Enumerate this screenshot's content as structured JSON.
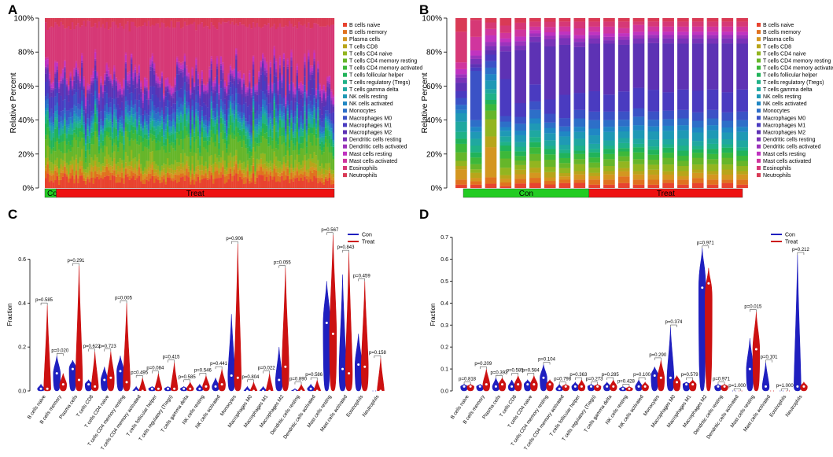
{
  "panel_letters": [
    "A",
    "B",
    "C",
    "D"
  ],
  "cell_types": [
    "B cells naive",
    "B cells memory",
    "Plasma cells",
    "T cells CD8",
    "T cells CD4 naive",
    "T cells CD4 memory resting",
    "T cells CD4 memory activated",
    "T cells follicular helper",
    "T cells regulatory (Tregs)",
    "T cells gamma delta",
    "NK cells resting",
    "NK cells activated",
    "Monocytes",
    "Macrophages M0",
    "Macrophages M1",
    "Macrophages M2",
    "Dendritic cells resting",
    "Dendritic cells activated",
    "Mast cells resting",
    "Mast cells activated",
    "Eosinophils",
    "Neutrophils"
  ],
  "palette": [
    "#e8432f",
    "#e0721f",
    "#d49620",
    "#b8a51a",
    "#93b520",
    "#66b62a",
    "#3db83a",
    "#21b35a",
    "#1fb287",
    "#1fa8a0",
    "#1f99b5",
    "#2087c4",
    "#2d6fc8",
    "#3b52c6",
    "#4a3bc0",
    "#5d32b4",
    "#7a32b8",
    "#9c33bc",
    "#c033c0",
    "#d0359e",
    "#d63876",
    "#d93a55"
  ],
  "chart_data": [
    {
      "panel": "A",
      "type": "bar",
      "stacked": true,
      "ylabel": "Relative Percent",
      "yticks": [
        "0%",
        "20%",
        "40%",
        "60%",
        "80%",
        "100%"
      ],
      "ylim": [
        0,
        100
      ],
      "groups": [
        {
          "label": "Con",
          "color": "#22cc22",
          "n": 6
        },
        {
          "label": "Treat",
          "color": "#ee1111",
          "n": 146
        }
      ],
      "sample_count": 152,
      "legend": "right"
    },
    {
      "panel": "B",
      "type": "bar",
      "stacked": true,
      "ylabel": "Relative Percent",
      "yticks": [
        "0%",
        "20%",
        "40%",
        "60%",
        "80%",
        "100%"
      ],
      "ylim": [
        0,
        100
      ],
      "groups": [
        {
          "label": "Con",
          "color": "#22cc22",
          "n": 9
        },
        {
          "label": "Treat",
          "color": "#ee1111",
          "n": 11
        }
      ],
      "samples_percent": [
        [
          2,
          3,
          6,
          2,
          3,
          5,
          5,
          3,
          4,
          6,
          5,
          2,
          3,
          4,
          4,
          5,
          3,
          2,
          3,
          4,
          18,
          8
        ],
        [
          2,
          2,
          2,
          3,
          2,
          3,
          4,
          3,
          4,
          4,
          4,
          3,
          4,
          29,
          2,
          2,
          3,
          2,
          3,
          8,
          10,
          1
        ],
        [
          2,
          3,
          14,
          5,
          8,
          4,
          3,
          2,
          3,
          2,
          4,
          3,
          3,
          3,
          3,
          2,
          2,
          2,
          3,
          3,
          3,
          2
        ],
        [
          1,
          2,
          2,
          2,
          4,
          5,
          4,
          3,
          2,
          3,
          3,
          2,
          3,
          3,
          20,
          15,
          3,
          2,
          2,
          3,
          4,
          4
        ],
        [
          2,
          2,
          2,
          2,
          2,
          2,
          2,
          2,
          2,
          2,
          3,
          2,
          3,
          3,
          6,
          23,
          2,
          2,
          2,
          3,
          3,
          2
        ],
        [
          3,
          3,
          3,
          3,
          4,
          4,
          4,
          3,
          3,
          4,
          4,
          3,
          5,
          5,
          10,
          25,
          3,
          2,
          2,
          2,
          3,
          2
        ],
        [
          2,
          2,
          2,
          3,
          3,
          4,
          3,
          3,
          2,
          3,
          4,
          3,
          3,
          5,
          8,
          30,
          4,
          2,
          2,
          3,
          3,
          2
        ],
        [
          3,
          2,
          2,
          2,
          3,
          3,
          3,
          3,
          2,
          3,
          5,
          3,
          3,
          5,
          14,
          30,
          4,
          2,
          2,
          3,
          3,
          2
        ],
        [
          3,
          2,
          3,
          2,
          4,
          3,
          3,
          2,
          3,
          4,
          4,
          3,
          5,
          5,
          10,
          27,
          3,
          2,
          2,
          4,
          4,
          2
        ],
        [
          2,
          3,
          2,
          2,
          3,
          3,
          3,
          3,
          2,
          3,
          5,
          4,
          5,
          5,
          12,
          28,
          3,
          2,
          2,
          3,
          3,
          2
        ],
        [
          2,
          3,
          3,
          2,
          3,
          4,
          3,
          3,
          2,
          3,
          5,
          3,
          4,
          5,
          10,
          30,
          2,
          2,
          2,
          4,
          3,
          2
        ],
        [
          3,
          4,
          3,
          2,
          4,
          3,
          3,
          2,
          3,
          3,
          4,
          3,
          4,
          5,
          12,
          28,
          3,
          2,
          2,
          3,
          4,
          2
        ],
        [
          2,
          3,
          3,
          2,
          4,
          3,
          4,
          3,
          2,
          3,
          5,
          3,
          5,
          5,
          12,
          26,
          3,
          2,
          2,
          4,
          2,
          2
        ],
        [
          2,
          3,
          3,
          3,
          3,
          3,
          3,
          3,
          2,
          4,
          5,
          3,
          4,
          5,
          13,
          28,
          3,
          2,
          2,
          3,
          3,
          2
        ],
        [
          3,
          2,
          3,
          2,
          4,
          4,
          3,
          3,
          2,
          3,
          5,
          3,
          4,
          5,
          11,
          29,
          3,
          2,
          2,
          3,
          3,
          2
        ],
        [
          2,
          3,
          2,
          3,
          3,
          3,
          3,
          3,
          3,
          4,
          5,
          3,
          4,
          5,
          12,
          27,
          3,
          2,
          2,
          3,
          3,
          2
        ],
        [
          3,
          3,
          3,
          2,
          3,
          4,
          3,
          2,
          2,
          3,
          5,
          3,
          4,
          5,
          13,
          28,
          3,
          2,
          2,
          3,
          3,
          2
        ],
        [
          2,
          3,
          3,
          2,
          4,
          3,
          3,
          3,
          3,
          3,
          5,
          3,
          4,
          5,
          12,
          27,
          3,
          2,
          2,
          3,
          3,
          2
        ],
        [
          3,
          2,
          3,
          3,
          3,
          4,
          3,
          3,
          2,
          3,
          4,
          3,
          4,
          5,
          12,
          29,
          3,
          2,
          2,
          3,
          3,
          2
        ],
        [
          2,
          3,
          3,
          2,
          3,
          3,
          3,
          3,
          2,
          4,
          5,
          3,
          4,
          5,
          13,
          27,
          3,
          2,
          2,
          3,
          3,
          2
        ]
      ],
      "legend": "right"
    },
    {
      "panel": "C",
      "type": "violin",
      "ylabel": "Fraction",
      "yticks": [
        "0.0",
        "0.2",
        "0.4",
        "0.6"
      ],
      "ylim": [
        0,
        0.72
      ],
      "series_colors": {
        "Con": "#1f1fbf",
        "Treat": "#cc1111"
      },
      "legend": {
        "entries": [
          "Con",
          "Treat"
        ],
        "position": "top-right"
      },
      "pvalues": [
        "p=0.585",
        "p=0.020",
        "p=0.291",
        "p=0.622",
        "p=0.723",
        "p=0.005",
        "p=0.495",
        "p=0.084",
        "p=0.415",
        "p=0.585",
        "p=0.546",
        "p=0.441",
        "p=0.906",
        "p=0.804",
        "p=0.022",
        "p=0.055",
        "p=0.890",
        "p=0.586",
        "p=0.567",
        "p=0.843",
        "p=0.459",
        "p=0.158"
      ],
      "con": [
        {
          "max": 0.03,
          "median": 0.01
        },
        {
          "max": 0.16,
          "median": 0.08
        },
        {
          "max": 0.14,
          "median": 0.1
        },
        {
          "max": 0.05,
          "median": 0.03
        },
        {
          "max": 0.11,
          "median": 0.05
        },
        {
          "max": 0.16,
          "median": 0.09
        },
        {
          "max": 0.02,
          "median": 0.0
        },
        {
          "max": 0.02,
          "median": 0.01
        },
        {
          "max": 0.02,
          "median": 0.01
        },
        {
          "max": 0.02,
          "median": 0.01
        },
        {
          "max": 0.03,
          "median": 0.01
        },
        {
          "max": 0.06,
          "median": 0.02
        },
        {
          "max": 0.35,
          "median": 0.07
        },
        {
          "max": 0.02,
          "median": 0.0
        },
        {
          "max": 0.02,
          "median": 0.0
        },
        {
          "max": 0.2,
          "median": 0.05
        },
        {
          "max": 0.01,
          "median": 0.0
        },
        {
          "max": 0.03,
          "median": 0.01
        },
        {
          "max": 0.5,
          "median": 0.31
        },
        {
          "max": 0.53,
          "median": 0.1
        },
        {
          "max": 0.26,
          "median": 0.12
        },
        {
          "max": 0.0,
          "median": 0.0
        }
      ],
      "treat": [
        {
          "max": 0.39,
          "median": 0.01
        },
        {
          "max": 0.08,
          "median": 0.03
        },
        {
          "max": 0.57,
          "median": 0.05
        },
        {
          "max": 0.18,
          "median": 0.02
        },
        {
          "max": 0.18,
          "median": 0.06
        },
        {
          "max": 0.4,
          "median": 0.04
        },
        {
          "max": 0.06,
          "median": 0.0
        },
        {
          "max": 0.08,
          "median": 0.01
        },
        {
          "max": 0.13,
          "median": 0.01
        },
        {
          "max": 0.04,
          "median": 0.01
        },
        {
          "max": 0.07,
          "median": 0.02
        },
        {
          "max": 0.1,
          "median": 0.03
        },
        {
          "max": 0.67,
          "median": 0.06
        },
        {
          "max": 0.04,
          "median": 0.0
        },
        {
          "max": 0.08,
          "median": 0.0
        },
        {
          "max": 0.56,
          "median": 0.11
        },
        {
          "max": 0.03,
          "median": 0.0
        },
        {
          "max": 0.05,
          "median": 0.0
        },
        {
          "max": 0.71,
          "median": 0.26
        },
        {
          "max": 0.63,
          "median": 0.08
        },
        {
          "max": 0.5,
          "median": 0.11
        },
        {
          "max": 0.15,
          "median": 0.0
        }
      ]
    },
    {
      "panel": "D",
      "type": "violin",
      "ylabel": "Fraction",
      "yticks": [
        "0.0",
        "0.1",
        "0.2",
        "0.3",
        "0.4",
        "0.5",
        "0.6",
        "0.7"
      ],
      "ylim": [
        0,
        0.72
      ],
      "series_colors": {
        "Con": "#1f1fbf",
        "Treat": "#cc1111"
      },
      "legend": {
        "entries": [
          "Con",
          "Treat"
        ],
        "position": "top-right"
      },
      "pvalues": [
        "p=0.818",
        "p=0.209",
        "p=0.393",
        "p=0.585",
        "p=0.584",
        "p=0.104",
        "p=0.798",
        "p=0.363",
        "p=0.273",
        "p=0.285",
        "p=0.428",
        "p=0.100",
        "p=0.290",
        "p=0.374",
        "p=0.579",
        "p=0.971",
        "p=0.971",
        "p=1.000",
        "p=0.015",
        "p=0.101",
        "p=1.000",
        "p=0.212"
      ],
      "con": [
        {
          "max": 0.03,
          "median": 0.02
        },
        {
          "max": 0.03,
          "median": 0.02
        },
        {
          "max": 0.06,
          "median": 0.02
        },
        {
          "max": 0.05,
          "median": 0.02
        },
        {
          "max": 0.05,
          "median": 0.03
        },
        {
          "max": 0.12,
          "median": 0.06
        },
        {
          "max": 0.03,
          "median": 0.01
        },
        {
          "max": 0.04,
          "median": 0.02
        },
        {
          "max": 0.03,
          "median": 0.02
        },
        {
          "max": 0.04,
          "median": 0.02
        },
        {
          "max": 0.02,
          "median": 0.01
        },
        {
          "max": 0.05,
          "median": 0.02
        },
        {
          "max": 0.11,
          "median": 0.07
        },
        {
          "max": 0.29,
          "median": 0.06
        },
        {
          "max": 0.04,
          "median": 0.03
        },
        {
          "max": 0.65,
          "median": 0.47
        },
        {
          "max": 0.03,
          "median": 0.02
        },
        {
          "max": 0.0,
          "median": 0.0
        },
        {
          "max": 0.24,
          "median": 0.1
        },
        {
          "max": 0.13,
          "median": 0.02
        },
        {
          "max": 0.0,
          "median": 0.0
        },
        {
          "max": 0.62,
          "median": 0.02
        }
      ],
      "treat": [
        {
          "max": 0.03,
          "median": 0.02
        },
        {
          "max": 0.1,
          "median": 0.03
        },
        {
          "max": 0.06,
          "median": 0.03
        },
        {
          "max": 0.07,
          "median": 0.03
        },
        {
          "max": 0.07,
          "median": 0.03
        },
        {
          "max": 0.05,
          "median": 0.03
        },
        {
          "max": 0.03,
          "median": 0.02
        },
        {
          "max": 0.05,
          "median": 0.02
        },
        {
          "max": 0.03,
          "median": 0.02
        },
        {
          "max": 0.05,
          "median": 0.02
        },
        {
          "max": 0.02,
          "median": 0.01
        },
        {
          "max": 0.04,
          "median": 0.02
        },
        {
          "max": 0.14,
          "median": 0.06
        },
        {
          "max": 0.07,
          "median": 0.04
        },
        {
          "max": 0.05,
          "median": 0.03
        },
        {
          "max": 0.56,
          "median": 0.49
        },
        {
          "max": 0.03,
          "median": 0.02
        },
        {
          "max": 0.0,
          "median": 0.0
        },
        {
          "max": 0.36,
          "median": 0.19
        },
        {
          "max": 0.0,
          "median": 0.0
        },
        {
          "max": 0.0,
          "median": 0.0
        },
        {
          "max": 0.04,
          "median": 0.02
        }
      ]
    }
  ]
}
